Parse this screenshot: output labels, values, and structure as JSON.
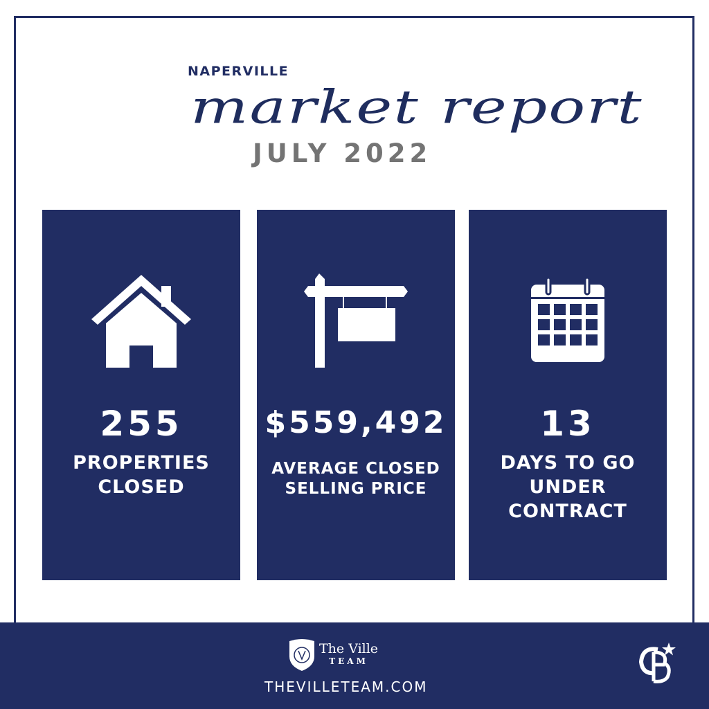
{
  "header": {
    "city": "NAPERVILLE",
    "title": "market report",
    "month": "JULY 2022"
  },
  "stats": [
    {
      "value": "255",
      "label_lines": [
        "PROPERTIES",
        "CLOSED"
      ],
      "icon": "house-icon"
    },
    {
      "value": "$559,492",
      "label_lines": [
        "AVERAGE CLOSED",
        "SELLING PRICE"
      ],
      "icon": "sign-post-icon"
    },
    {
      "value": "13",
      "label_lines": [
        "DAYS TO GO",
        "UNDER",
        "CONTRACT"
      ],
      "icon": "calendar-icon"
    }
  ],
  "footer": {
    "brand_line1": "The Ville",
    "brand_line2": "TEAM",
    "url": "THEVILLETEAM.COM",
    "partner_logo": "CB"
  },
  "colors": {
    "navy": "#212d63",
    "gray": "#747474"
  }
}
